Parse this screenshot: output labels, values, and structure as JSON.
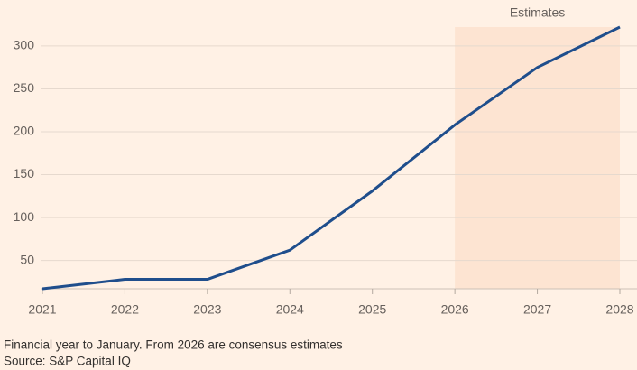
{
  "chart_data": {
    "type": "line",
    "annotation": "Estimates",
    "shaded_range": [
      2026,
      2028
    ],
    "shaded_color": "#fde4d2",
    "x": [
      2021,
      2022,
      2023,
      2024,
      2025,
      2026,
      2027,
      2028
    ],
    "series": [
      {
        "name": null,
        "color": "#1f4e8c",
        "values": [
          17,
          28,
          28,
          62,
          131,
          208,
          275,
          322
        ]
      }
    ],
    "xlim": [
      2021,
      2028
    ],
    "xticks": [
      2021,
      2022,
      2023,
      2024,
      2025,
      2026,
      2027,
      2028
    ],
    "ylim": [
      17,
      322
    ],
    "yticks": [
      50,
      100,
      150,
      200,
      250,
      300
    ],
    "grid": true,
    "note": "Financial year to January. From 2026 are consensus estimates",
    "source": "Source: S&P Capital IQ"
  }
}
